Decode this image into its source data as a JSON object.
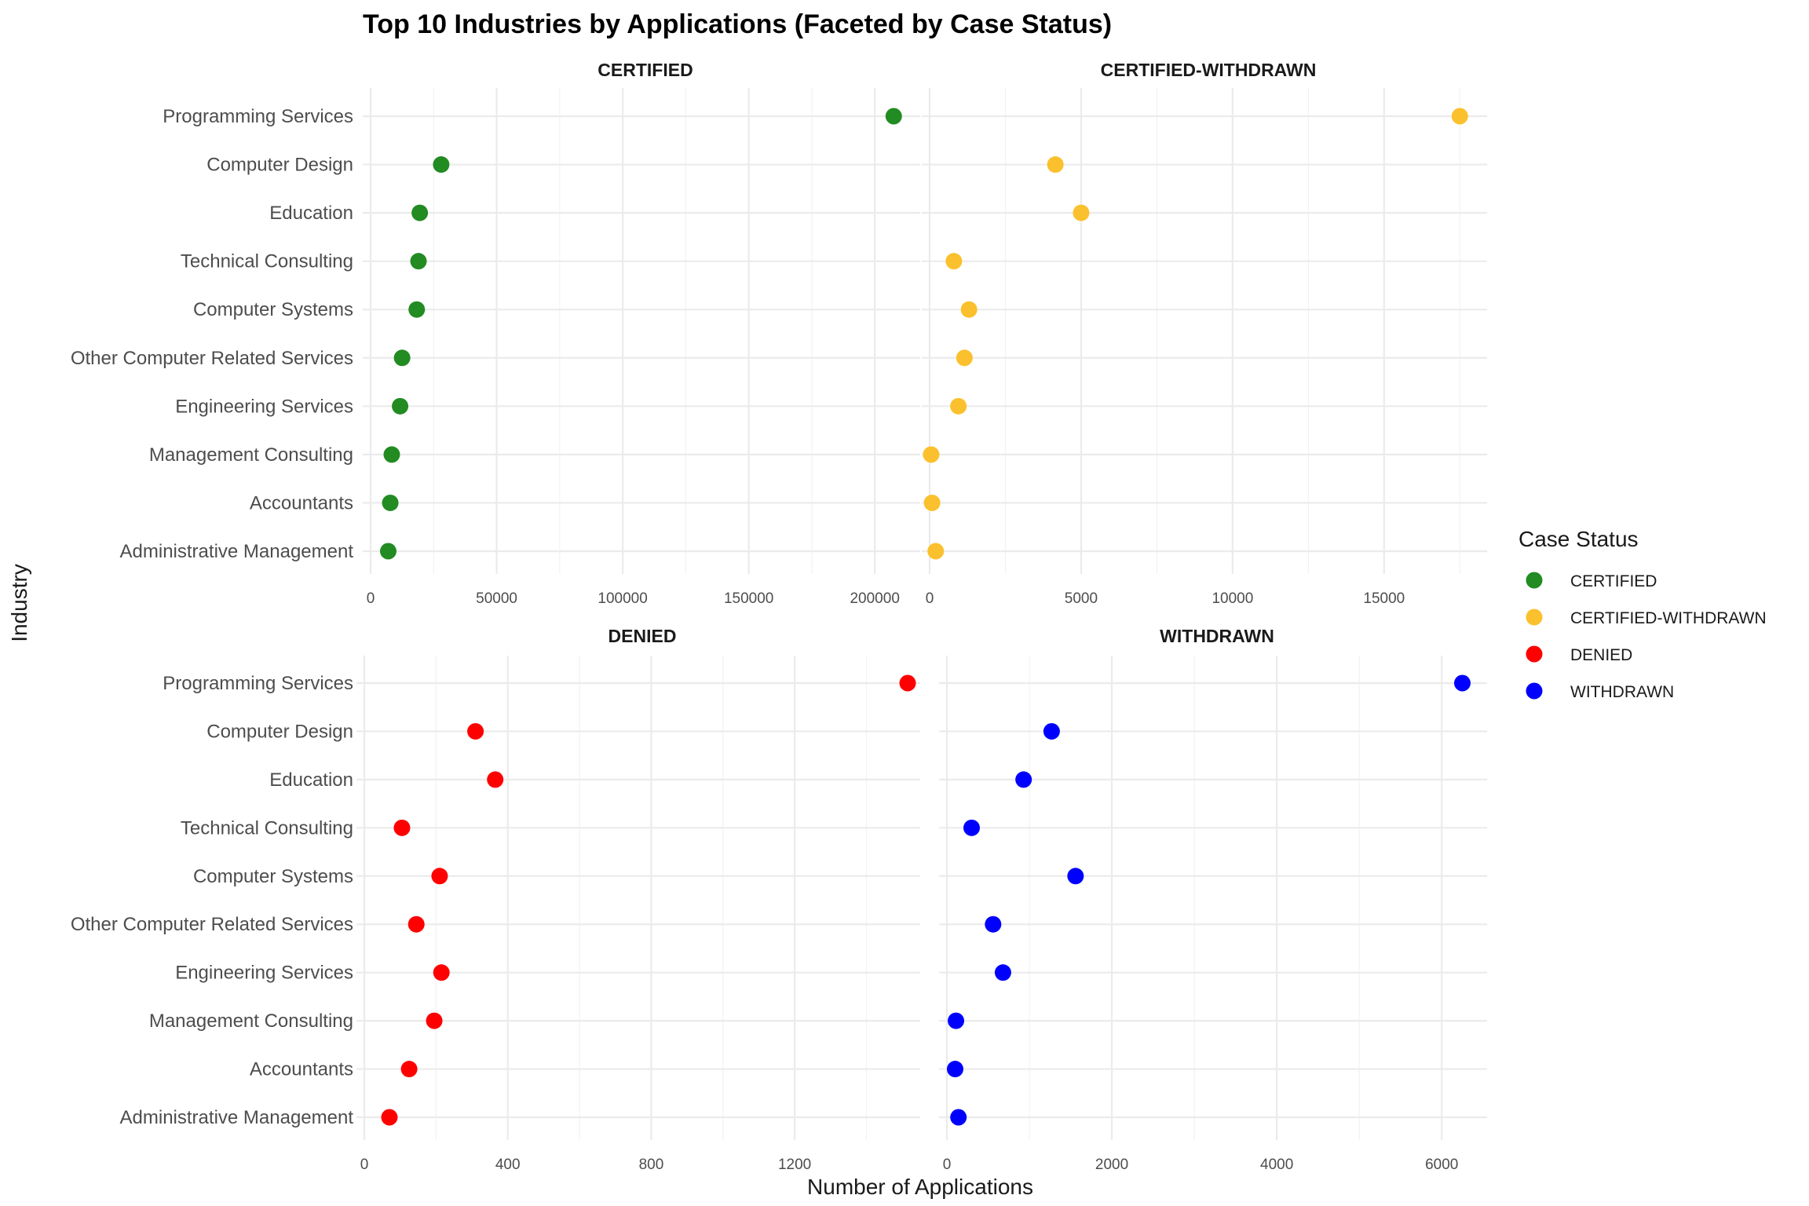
{
  "chart_data": {
    "type": "scatter",
    "title": "Top 10 Industries by Applications (Faceted by Case Status)",
    "xlabel": "Number of Applications",
    "ylabel": "Industry",
    "legend": {
      "title": "Case Status",
      "placement": "right",
      "entries": [
        {
          "name": "CERTIFIED",
          "color": "#228B22"
        },
        {
          "name": "CERTIFIED-WITHDRAWN",
          "color": "#FBC02D"
        },
        {
          "name": "DENIED",
          "color": "#FF0000"
        },
        {
          "name": "WITHDRAWN",
          "color": "#0000FF"
        }
      ]
    },
    "categories": [
      "Programming Services",
      "Computer Design",
      "Education",
      "Technical Consulting",
      "Computer Systems",
      "Other Computer Related Services",
      "Engineering Services",
      "Management Consulting",
      "Accountants",
      "Administrative Management"
    ],
    "grid": true,
    "facets": [
      {
        "name": "CERTIFIED",
        "color": "#228B22",
        "xlim": [
          0,
          218000
        ],
        "xticks": [
          0,
          50000,
          100000,
          150000,
          200000
        ],
        "xtick_labels": [
          "0",
          "50000",
          "100000",
          "150000",
          "200000"
        ],
        "values": [
          207500,
          28000,
          19500,
          19000,
          18300,
          12500,
          11700,
          8400,
          7800,
          7000
        ]
      },
      {
        "name": "CERTIFIED-WITHDRAWN",
        "color": "#FBC02D",
        "xlim": [
          0,
          18400
        ],
        "xticks": [
          0,
          5000,
          10000,
          15000
        ],
        "xtick_labels": [
          "0",
          "5000",
          "10000",
          "15000"
        ],
        "values": [
          17500,
          4150,
          5000,
          800,
          1300,
          1150,
          950,
          50,
          80,
          200
        ]
      },
      {
        "name": "DENIED",
        "color": "#FF0000",
        "xlim": [
          0,
          1550
        ],
        "xticks": [
          0,
          400,
          800,
          1200
        ],
        "xtick_labels": [
          "0",
          "400",
          "800",
          "1200"
        ],
        "values": [
          1515,
          310,
          365,
          105,
          210,
          145,
          215,
          195,
          125,
          70
        ]
      },
      {
        "name": "WITHDRAWN",
        "color": "#0000FF",
        "xlim": [
          0,
          6550
        ],
        "xticks": [
          0,
          2000,
          4000,
          6000
        ],
        "xtick_labels": [
          "0",
          "2000",
          "4000",
          "6000"
        ],
        "values": [
          6250,
          1270,
          930,
          300,
          1560,
          560,
          680,
          110,
          100,
          140
        ]
      }
    ]
  }
}
